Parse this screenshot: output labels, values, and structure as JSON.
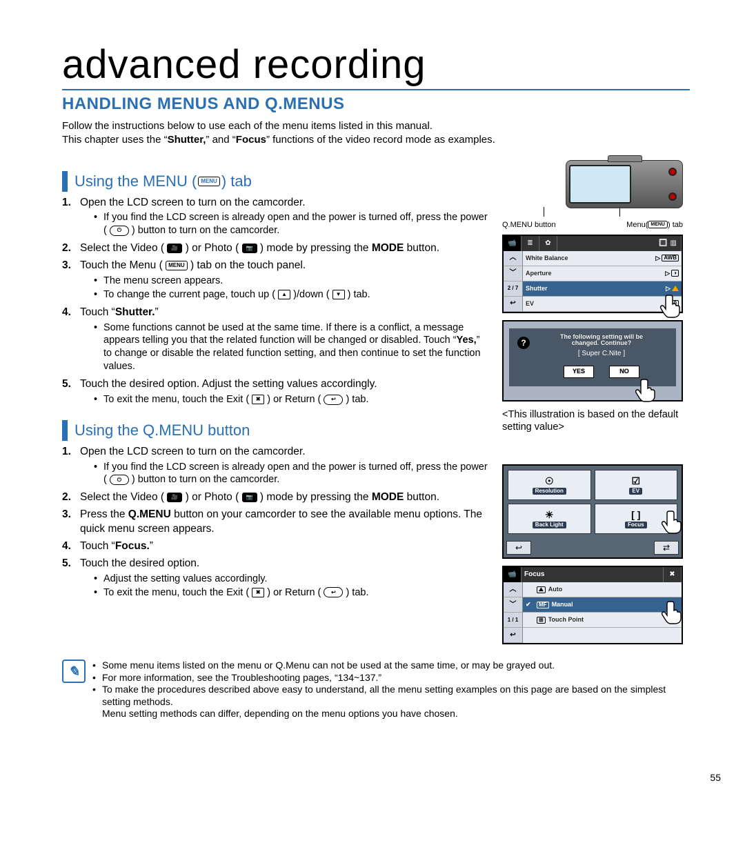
{
  "page": {
    "title": "advanced recording",
    "section_title": "HANDLING MENUS AND Q.MENUS",
    "intro_lines": [
      "Follow the instructions below to use each of the menu items listed in this manual.",
      "This chapter uses the “Shutter,” and “Focus” functions of the video record mode as examples."
    ],
    "page_number": "55"
  },
  "colors": {
    "accent": "#2a6fb4"
  },
  "menu_section": {
    "heading_prefix": "Using the MENU (",
    "heading_icon_label": "MENU",
    "heading_suffix": ") tab",
    "steps": [
      {
        "text": "Open the LCD screen to turn on the camcorder.",
        "sub": [
          "If you find the LCD screen is already open and the power is turned off, press the power ( Ⓕ ) button to turn on the camcorder."
        ]
      },
      {
        "text_html": "Select the Video ( <videoicon></videoicon> ) or Photo ( <photoicon></photoicon> ) mode by pressing the <b>MODE</b> button."
      },
      {
        "text_html": "Touch the Menu ( <menuicon></menuicon> ) tab on the touch panel.",
        "sub": [
          "The menu screen appears.",
          "To change the current page, touch up ( ▲ )/down ( ▼ ) tab."
        ]
      },
      {
        "text_html": "Touch “<b>Shutter.</b>”",
        "sub": [
          "Some functions cannot be used at the same time. If there is a conflict, a message appears telling you that the related function will be changed or disabled. Touch “<b>Yes,</b>” to change or disable the related function setting, and then continue to set the function values."
        ]
      },
      {
        "text": "Touch the desired option. Adjust the setting values accordingly.",
        "sub": [
          "To exit the menu, touch the Exit ( ✖ ) or Return ( ↩ ) tab."
        ]
      }
    ]
  },
  "qmenu_section": {
    "heading": "Using the Q.MENU button",
    "steps": [
      {
        "text": "Open the LCD screen to turn on the camcorder.",
        "sub": [
          "If you find the LCD screen is already open and the power is turned off, press the power ( Ⓕ ) button to turn on the camcorder."
        ]
      },
      {
        "text_html": "Select the Video ( <videoicon></videoicon> ) or Photo ( <photoicon></photoicon> ) mode by pressing the <b>MODE</b> button."
      },
      {
        "text_html": "Press the <b>Q.MENU</b> button on your camcorder to see the available menu options. The quick menu screen appears."
      },
      {
        "text_html": "Touch “<b>Focus.</b>”"
      },
      {
        "text": "Touch the desired option.",
        "sub": [
          "Adjust the setting values accordingly.",
          "To exit the menu, touch the Exit ( ✖ ) or Return ( ↩ ) tab."
        ]
      }
    ]
  },
  "notes": [
    "Some menu items listed on the menu or Q.Menu can not be used at the same time, or may be grayed out.",
    "For more information, see the Troubleshooting pages, “134~137.”",
    "To make the procedures described above easy to understand, all the menu setting examples on this page are based on the simplest setting methods.\nMenu setting methods can differ, depending on the menu options you have chosen."
  ],
  "diagram_labels": {
    "qmenu_btn": "Q.MENU button",
    "menu_tab": "Menu(MENU) tab"
  },
  "lcd_menu": {
    "pager": "2 / 7",
    "rows": [
      {
        "name": "White Balance",
        "value_icon": "AWB",
        "selected": false
      },
      {
        "name": "Aperture",
        "value_icon": "◑",
        "selected": false
      },
      {
        "name": "Shutter",
        "value_icon": "SHUTTER_TRI",
        "selected": true
      },
      {
        "name": "EV",
        "value_icon": "0",
        "selected": false
      }
    ]
  },
  "dialog": {
    "msg_line1": "The following setting will be",
    "msg_line2": "changed. Continue?",
    "option": "[    Super C.Nite    ]",
    "yes": "YES",
    "no": "NO"
  },
  "caption": "<This illustration is based on the default setting value>",
  "qmenu_grid": {
    "cells": [
      {
        "icon": "☉",
        "label": "Resolution"
      },
      {
        "icon": "☑",
        "label": "EV"
      },
      {
        "icon": "☀",
        "label": "Back Light"
      },
      {
        "icon": "[ ]",
        "label": "Focus"
      }
    ],
    "bottom_left": "↩",
    "bottom_right": "⇄"
  },
  "focus_panel": {
    "title": "Focus",
    "pager": "1 / 1",
    "rows": [
      {
        "name": "Auto",
        "icon": "⛰",
        "checked": false
      },
      {
        "name": "Manual",
        "icon": "MF",
        "checked": true
      },
      {
        "name": "Touch Point",
        "icon": "⊞",
        "checked": false
      }
    ]
  }
}
